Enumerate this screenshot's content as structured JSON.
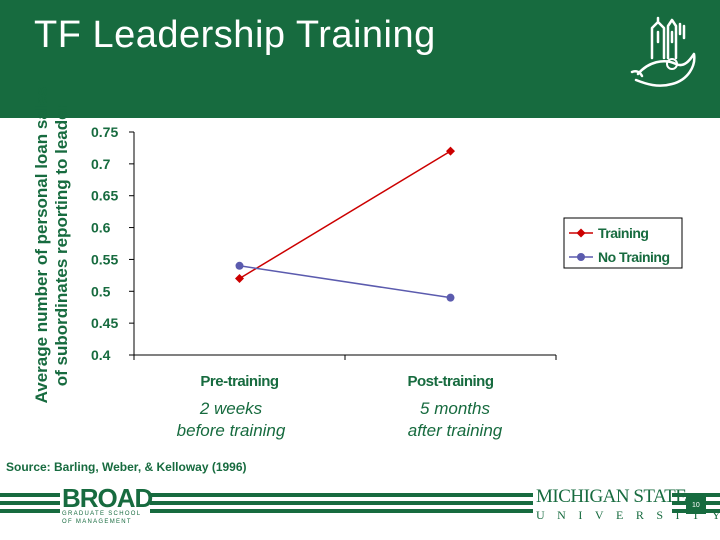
{
  "slide": {
    "title": "TF Leadership Training",
    "source": "Source: Barling, Weber, & Kelloway (1996)",
    "page_number": "10",
    "notes": {
      "pre": [
        "2 weeks",
        "before training"
      ],
      "post": [
        "5 months",
        "after training"
      ]
    },
    "logos": {
      "broad_main": "BROAD",
      "broad_sub1": "GRADUATE SCHOOL",
      "broad_sub2": "OF MANAGEMENT",
      "msu_top": "MICHIGAN STATE",
      "msu_bottom": "UNIVERSITY"
    }
  },
  "colors": {
    "brand_green": "#176b3f",
    "training": "#cc0000",
    "no_training": "#5b5bae"
  },
  "chart_data": {
    "type": "line",
    "categories": [
      "Pre-training",
      "Post-training"
    ],
    "series": [
      {
        "name": "Training",
        "values": [
          0.52,
          0.72
        ],
        "color": "#cc0000",
        "marker": "diamond"
      },
      {
        "name": "No Training",
        "values": [
          0.54,
          0.49
        ],
        "color": "#5b5bae",
        "marker": "circle"
      }
    ],
    "ylabel": [
      "Average number of personal loan sales",
      "of subordinates reporting to leader"
    ],
    "ylim": [
      0.4,
      0.75
    ],
    "yticks": [
      0.4,
      0.45,
      0.5,
      0.55,
      0.6,
      0.65,
      0.7,
      0.75
    ],
    "grid": false,
    "legend_position": "right"
  }
}
